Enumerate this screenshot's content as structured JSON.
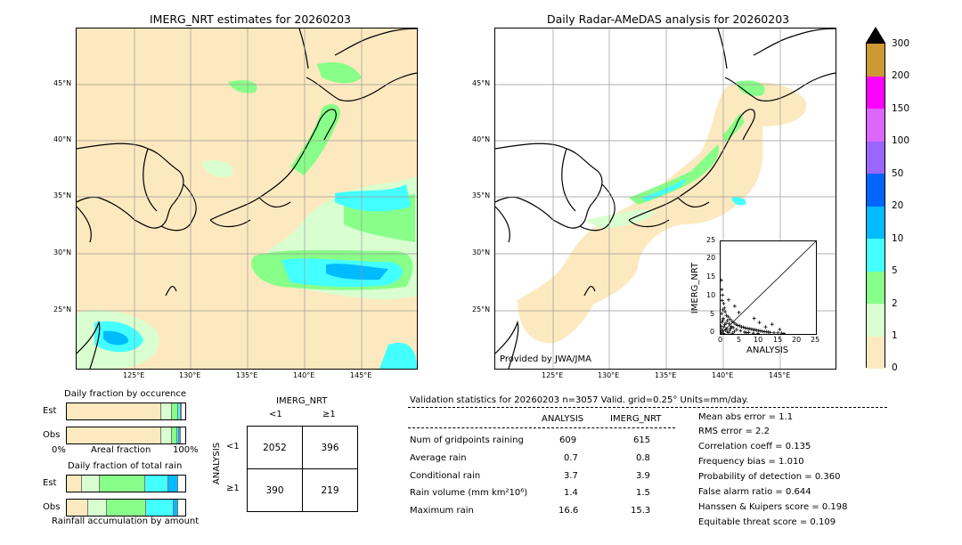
{
  "left_map": {
    "title": "IMERG_NRT estimates for 20260203",
    "lat_labels": [
      "45°N",
      "40°N",
      "35°N",
      "30°N",
      "25°N"
    ],
    "lon_labels": [
      "125°E",
      "130°E",
      "135°E",
      "140°E",
      "145°E"
    ]
  },
  "right_map": {
    "title": "Daily Radar-AMeDAS analysis for 20260203",
    "lat_labels": [
      "45°N",
      "40°N",
      "35°N",
      "30°N",
      "25°N"
    ],
    "lon_labels": [
      "125°E",
      "130°E",
      "135°E",
      "140°E",
      "145°E"
    ],
    "credit": "Provided by JWA/JMA"
  },
  "colorbar": {
    "labels": [
      "300",
      "200",
      "150",
      "100",
      "50",
      "20",
      "10",
      "5",
      "2",
      "1",
      "0"
    ],
    "colors": [
      "#cc9933",
      "#ff00ff",
      "#dd66ff",
      "#9966ff",
      "#0066ff",
      "#00bbff",
      "#44ffff",
      "#88ff88",
      "#d9ffd0",
      "#fde9bf"
    ]
  },
  "scatter": {
    "xlabel": "ANALYSIS",
    "ylabel": "IMERG_NRT",
    "ticks": [
      "0",
      "5",
      "10",
      "15",
      "20",
      "25"
    ]
  },
  "fraction_occurrence": {
    "title": "Daily fraction by occurence",
    "rows": [
      "Est",
      "Obs"
    ],
    "axis_left": "0%",
    "axis_mid": "Areal fraction",
    "axis_right": "100%"
  },
  "fraction_total": {
    "title": "Daily fraction of total rain",
    "rows": [
      "Est",
      "Obs"
    ],
    "footer": "Rainfall accumulation by amount"
  },
  "contingency": {
    "col_title": "IMERG_NRT",
    "col_lt": "<1",
    "col_ge": "≥1",
    "row_title": "ANALYSIS",
    "row_lt": "<1",
    "row_ge": "≥1",
    "a": "2052",
    "b": "396",
    "c": "390",
    "d": "219"
  },
  "validation": {
    "header": "Validation statistics for 20260203  n=3057 Valid. grid=0.25° Units=mm/day.",
    "col_analysis": "ANALYSIS",
    "col_imerg": "IMERG_NRT",
    "rows": [
      {
        "label": "Num of gridpoints raining",
        "analysis": "609",
        "imerg": "615"
      },
      {
        "label": "Average rain",
        "analysis": "0.7",
        "imerg": "0.8"
      },
      {
        "label": "Conditional rain",
        "analysis": "3.7",
        "imerg": "3.9"
      },
      {
        "label": "Rain volume (mm km²10⁶)",
        "analysis": "1.4",
        "imerg": "1.5"
      },
      {
        "label": "Maximum rain",
        "analysis": "16.6",
        "imerg": "15.3"
      }
    ],
    "scores": [
      "Mean abs error =    1.1",
      "RMS error =    2.2",
      "Correlation coeff =  0.135",
      "Frequency bias =  1.010",
      "Probability of detection =  0.360",
      "False alarm ratio =  0.644",
      "Hanssen & Kuipers score =  0.198",
      "Equitable threat score =  0.109"
    ]
  },
  "chart_data": [
    {
      "type": "scatter",
      "xlabel": "ANALYSIS",
      "ylabel": "IMERG_NRT",
      "xlim": [
        0,
        25
      ],
      "ylim": [
        0,
        25
      ],
      "points": [
        [
          0.2,
          14.5
        ],
        [
          0.3,
          12
        ],
        [
          0.5,
          10.5
        ],
        [
          0.4,
          9
        ],
        [
          0.8,
          8.2
        ],
        [
          1,
          7
        ],
        [
          0.6,
          6.5
        ],
        [
          1.2,
          6
        ],
        [
          0.3,
          5.5
        ],
        [
          1.5,
          5
        ],
        [
          2,
          4.6
        ],
        [
          0.7,
          4.2
        ],
        [
          2.5,
          4
        ],
        [
          1.8,
          3.6
        ],
        [
          3,
          3.4
        ],
        [
          0.4,
          3.2
        ],
        [
          3.5,
          3
        ],
        [
          2.2,
          2.8
        ],
        [
          4,
          2.6
        ],
        [
          1.1,
          2.5
        ],
        [
          4.5,
          2.3
        ],
        [
          5,
          2.2
        ],
        [
          2.8,
          2
        ],
        [
          5.5,
          1.9
        ],
        [
          6,
          1.8
        ],
        [
          3.3,
          1.7
        ],
        [
          6.5,
          1.6
        ],
        [
          7,
          1.5
        ],
        [
          1.6,
          1.4
        ],
        [
          7.5,
          1.4
        ],
        [
          8,
          1.3
        ],
        [
          4.2,
          1.2
        ],
        [
          8.5,
          1.2
        ],
        [
          9,
          1.1
        ],
        [
          2.4,
          1
        ],
        [
          9.5,
          1
        ],
        [
          10,
          0.9
        ],
        [
          5.2,
          0.9
        ],
        [
          10.5,
          0.8
        ],
        [
          11,
          0.7
        ],
        [
          3.6,
          0.7
        ],
        [
          11.5,
          0.6
        ],
        [
          12,
          0.6
        ],
        [
          6.3,
          0.5
        ],
        [
          12.5,
          0.5
        ],
        [
          13,
          0.4
        ],
        [
          7.4,
          0.4
        ],
        [
          14,
          0.3
        ],
        [
          15,
          0.3
        ],
        [
          8.6,
          0.2
        ],
        [
          16,
          0.2
        ],
        [
          16.6,
          0.1
        ],
        [
          9.8,
          0.1
        ],
        [
          0.9,
          1.9
        ],
        [
          1.3,
          1.1
        ],
        [
          1.7,
          0.6
        ],
        [
          2.1,
          0.3
        ],
        [
          2.6,
          1.5
        ],
        [
          3.1,
          0.2
        ],
        [
          0.5,
          0.8
        ],
        [
          0.2,
          2.1
        ],
        [
          0.6,
          3.8
        ],
        [
          1.4,
          2.9
        ],
        [
          13.5,
          2.6
        ],
        [
          15.5,
          1.2
        ],
        [
          10.2,
          3.1
        ],
        [
          8.8,
          4.2
        ],
        [
          4.8,
          5.8
        ],
        [
          3.7,
          7.5
        ],
        [
          2.1,
          9.2
        ],
        [
          6.8,
          0.3
        ],
        [
          11.8,
          1.9
        ],
        [
          0.1,
          0.4
        ],
        [
          0.3,
          1.3
        ],
        [
          0.8,
          0.1
        ]
      ]
    },
    {
      "type": "bar",
      "title": "Daily fraction by occurence",
      "categories": [
        "Est",
        "Obs"
      ],
      "series": [
        {
          "values": [
            0.8,
            0.8
          ]
        },
        {
          "values": [
            0.09,
            0.09
          ]
        },
        {
          "values": [
            0.05,
            0.04
          ]
        },
        {
          "values": [
            0.02,
            0.02
          ]
        },
        {
          "values": [
            0.01,
            0.01
          ]
        }
      ]
    },
    {
      "type": "bar",
      "title": "Daily fraction of total rain",
      "categories": [
        "Est",
        "Obs"
      ],
      "series": [
        {
          "values": [
            0.13,
            0.18
          ]
        },
        {
          "values": [
            0.15,
            0.16
          ]
        },
        {
          "values": [
            0.38,
            0.33
          ]
        },
        {
          "values": [
            0.2,
            0.23
          ]
        },
        {
          "values": [
            0.08,
            0.04
          ]
        }
      ]
    }
  ]
}
